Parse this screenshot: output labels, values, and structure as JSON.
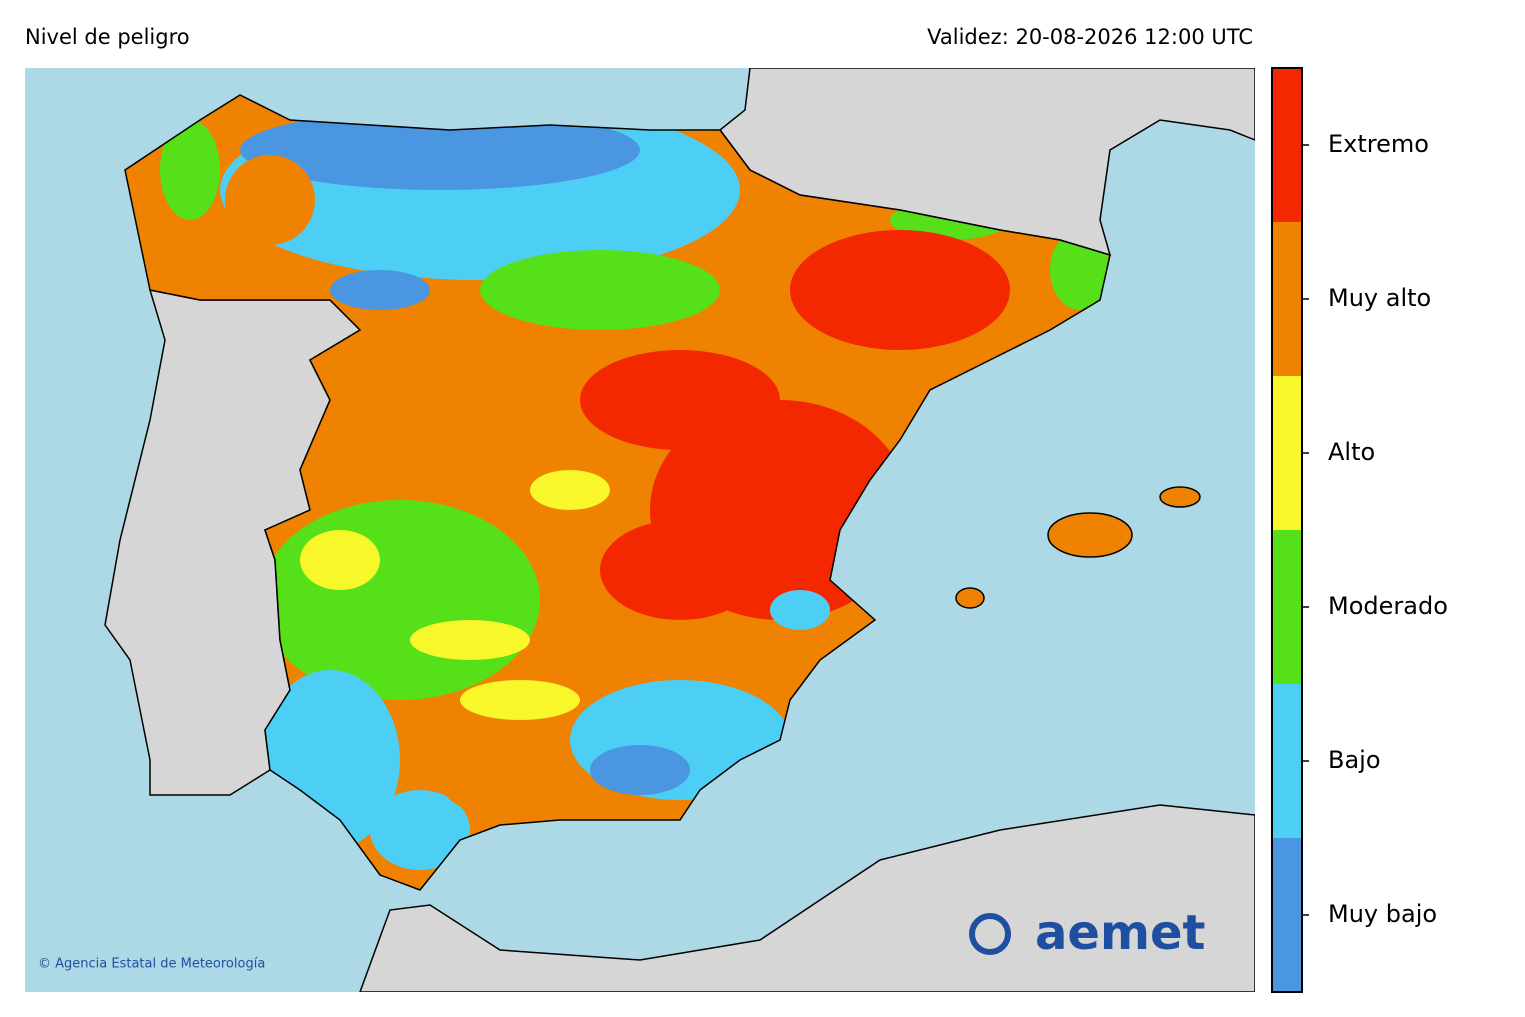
{
  "header": {
    "title": "Nivel de peligro",
    "validity": "Validez: 20-08-2026 12:00 UTC"
  },
  "legend": {
    "levels": [
      {
        "label": "Muy bajo",
        "color": "#4a96e0"
      },
      {
        "label": "Bajo",
        "color": "#4dcff5"
      },
      {
        "label": "Moderado",
        "color": "#55e019"
      },
      {
        "label": "Alto",
        "color": "#f7f72a"
      },
      {
        "label": "Muy alto",
        "color": "#ef8200"
      },
      {
        "label": "Extremo",
        "color": "#f42800"
      }
    ]
  },
  "credit": "© Agencia Estatal de Meteorología",
  "logo": "aemet"
}
